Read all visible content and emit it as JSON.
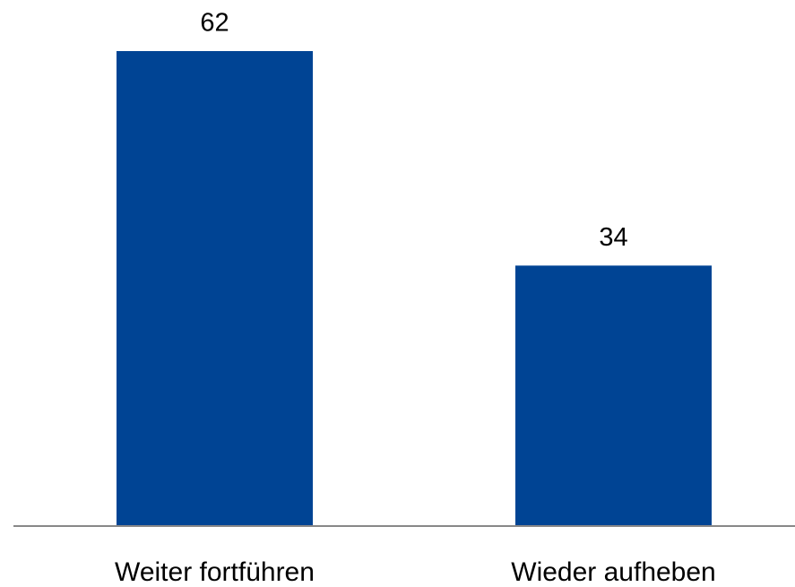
{
  "chart_data": {
    "type": "bar",
    "categories": [
      "Weiter fortführen",
      "Wieder aufheben"
    ],
    "values": [
      62,
      34
    ],
    "color": "#004494"
  }
}
